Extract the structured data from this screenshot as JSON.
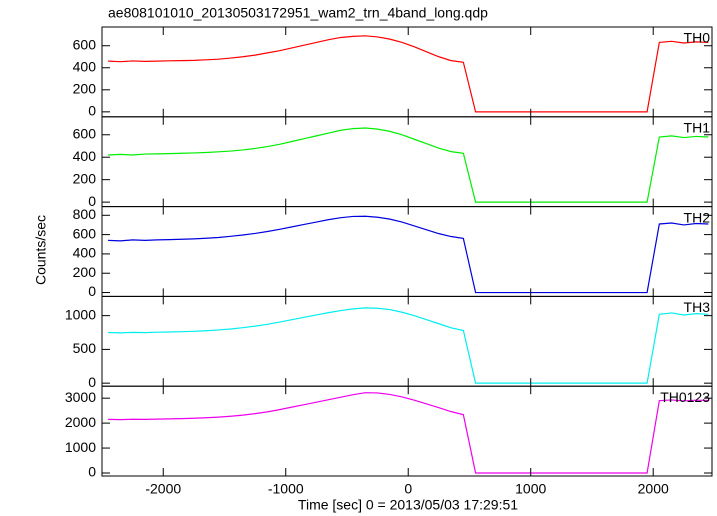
{
  "chart_data": {
    "type": "line",
    "title": "ae808101010_20130503172951_wam2_trn_4band_long.qdp",
    "xlabel": "Time [sec] 0 = 2013/05/03 17:29:51",
    "ylabel": "Counts/sec",
    "x": [
      -2450,
      -2350,
      -2250,
      -2150,
      -2050,
      -1950,
      -1850,
      -1750,
      -1650,
      -1550,
      -1450,
      -1350,
      -1250,
      -1150,
      -1050,
      -950,
      -850,
      -750,
      -650,
      -550,
      -450,
      -350,
      -250,
      -150,
      -50,
      50,
      150,
      250,
      350,
      450,
      550,
      650,
      750,
      850,
      950,
      1050,
      1150,
      1250,
      1350,
      1450,
      1550,
      1650,
      1750,
      1850,
      1950,
      2050,
      2150,
      2250,
      2350,
      2450
    ],
    "xlim": [
      -2500,
      2480
    ],
    "xticks": [
      -2000,
      -1000,
      0,
      1000,
      2000
    ],
    "series": [
      {
        "name": "TH0",
        "color": "#ff0000",
        "ylim": [
          -45,
          770
        ],
        "yticks": [
          0,
          200,
          400,
          600
        ],
        "values": [
          460,
          455,
          462,
          458,
          460,
          463,
          465,
          467,
          472,
          478,
          488,
          500,
          515,
          535,
          555,
          580,
          605,
          630,
          655,
          675,
          685,
          690,
          680,
          660,
          630,
          590,
          545,
          500,
          465,
          450,
          0,
          0,
          0,
          0,
          0,
          0,
          0,
          0,
          0,
          0,
          0,
          0,
          0,
          0,
          0,
          630,
          640,
          625,
          635,
          630
        ]
      },
      {
        "name": "TH1",
        "color": "#00ee00",
        "ylim": [
          -40,
          760
        ],
        "yticks": [
          0,
          200,
          400,
          600
        ],
        "values": [
          420,
          425,
          420,
          428,
          430,
          432,
          435,
          438,
          442,
          448,
          455,
          465,
          478,
          495,
          515,
          540,
          565,
          590,
          615,
          640,
          655,
          660,
          650,
          630,
          600,
          560,
          520,
          480,
          450,
          435,
          0,
          0,
          0,
          0,
          0,
          0,
          0,
          0,
          0,
          0,
          0,
          0,
          0,
          0,
          0,
          580,
          590,
          575,
          585,
          580
        ]
      },
      {
        "name": "TH2",
        "color": "#0000dd",
        "ylim": [
          -40,
          890
        ],
        "yticks": [
          0,
          200,
          400,
          600,
          800
        ],
        "values": [
          540,
          535,
          545,
          540,
          545,
          548,
          552,
          556,
          562,
          570,
          582,
          596,
          612,
          632,
          655,
          680,
          705,
          730,
          755,
          775,
          788,
          790,
          780,
          760,
          730,
          690,
          650,
          610,
          580,
          560,
          0,
          0,
          0,
          0,
          0,
          0,
          0,
          0,
          0,
          0,
          0,
          0,
          0,
          0,
          0,
          710,
          720,
          700,
          715,
          710
        ]
      },
      {
        "name": "TH3",
        "color": "#00eeee",
        "ylim": [
          -45,
          1285
        ],
        "yticks": [
          0,
          500,
          1000
        ],
        "values": [
          750,
          745,
          752,
          748,
          755,
          758,
          762,
          768,
          776,
          788,
          802,
          822,
          845,
          872,
          905,
          940,
          975,
          1010,
          1045,
          1075,
          1100,
          1115,
          1110,
          1090,
          1050,
          1000,
          940,
          880,
          820,
          780,
          0,
          0,
          0,
          0,
          0,
          0,
          0,
          0,
          0,
          0,
          0,
          0,
          0,
          0,
          0,
          1020,
          1040,
          1010,
          1030,
          1020
        ]
      },
      {
        "name": "TH0123",
        "color": "#ee00ee",
        "ylim": [
          -120,
          3480
        ],
        "yticks": [
          0,
          1000,
          2000,
          3000
        ],
        "values": [
          2150,
          2140,
          2155,
          2150,
          2160,
          2170,
          2180,
          2195,
          2215,
          2240,
          2275,
          2320,
          2380,
          2450,
          2540,
          2640,
          2740,
          2840,
          2940,
          3040,
          3140,
          3220,
          3210,
          3150,
          3050,
          2920,
          2770,
          2620,
          2460,
          2340,
          0,
          0,
          0,
          0,
          0,
          0,
          0,
          0,
          0,
          0,
          0,
          0,
          0,
          0,
          0,
          2900,
          2930,
          2890,
          2920,
          2910
        ]
      }
    ]
  }
}
